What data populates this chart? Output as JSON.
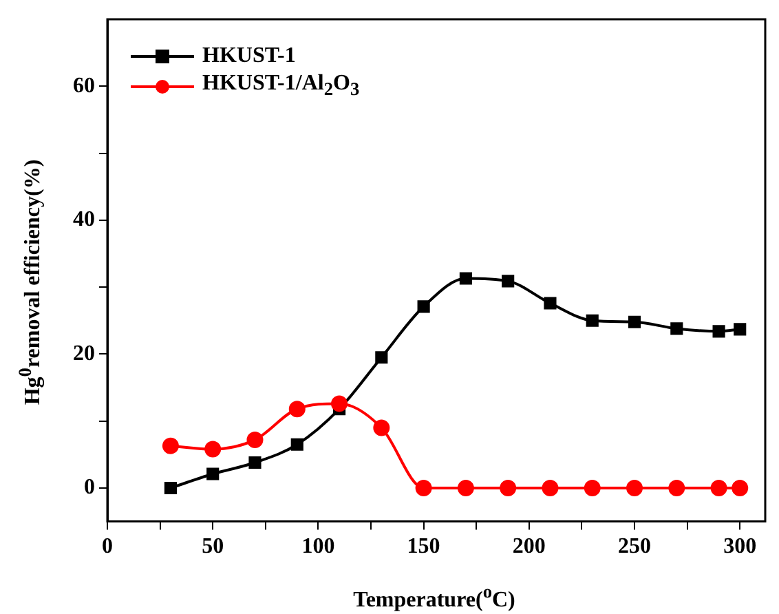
{
  "chart_data": {
    "type": "line",
    "xlabel": "Temperature($^{o}$C)",
    "ylabel": "Hg$^{0}$removal efficiency(%)",
    "x": [
      30,
      50,
      70,
      90,
      110,
      130,
      150,
      170,
      190,
      210,
      230,
      250,
      270,
      290,
      300
    ],
    "series": [
      {
        "name": "HKUST-1",
        "color": "#000000",
        "marker": "square",
        "values": [
          0,
          2.1,
          3.8,
          6.5,
          11.8,
          19.5,
          27.1,
          31.3,
          30.9,
          27.6,
          25.0,
          24.8,
          23.8,
          23.4,
          23.7
        ]
      },
      {
        "name": "HKUST-1/Al$_{2}$O$_{3}$",
        "color": "#ff0000",
        "marker": "circle",
        "values": [
          6.3,
          5.8,
          7.2,
          11.8,
          12.6,
          9.0,
          0,
          0,
          0,
          0,
          0,
          0,
          0,
          0,
          0
        ]
      }
    ],
    "xlim": [
      0,
      312
    ],
    "xticks": [
      0,
      {
        "value": 25,
        "label": null
      },
      50,
      {
        "value": 75,
        "label": null
      },
      100,
      {
        "value": 125,
        "label": null
      },
      150,
      {
        "value": 175,
        "label": null
      },
      200,
      {
        "value": 225,
        "label": null
      },
      250,
      {
        "value": 275,
        "label": null
      },
      300
    ],
    "ylim": [
      -5,
      70
    ],
    "yticks": [
      0,
      {
        "value": 10,
        "label": null
      },
      20,
      {
        "value": 30,
        "label": null
      },
      40,
      {
        "value": 50,
        "label": null
      },
      60
    ],
    "grid": false,
    "legend": "top left",
    "line_style": "solid"
  }
}
